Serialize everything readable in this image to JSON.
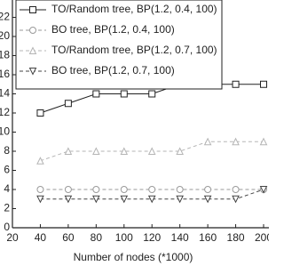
{
  "chart_data": {
    "type": "line",
    "x_label": "Number of nodes (*1000)",
    "x": [
      40,
      60,
      80,
      100,
      120,
      140,
      160,
      180,
      200
    ],
    "series": [
      {
        "name": "TO/Random tree, BP(1.2, 0.4, 100)",
        "color": "#222222",
        "marker": "square",
        "dashed": false,
        "values": [
          12,
          13,
          14,
          14,
          14,
          15,
          15,
          15,
          15
        ]
      },
      {
        "name": "BO tree, BP(1.2, 0.4, 100)",
        "color": "#9a9a9a",
        "marker": "circle",
        "dashed": true,
        "values": [
          4,
          4,
          4,
          4,
          4,
          4,
          4,
          4,
          4
        ]
      },
      {
        "name": "TO/Random tree, BP(1.2, 0.7, 100)",
        "color": "#b5b5b5",
        "marker": "triangle-up",
        "dashed": true,
        "values": [
          7,
          8,
          8,
          8,
          8,
          8,
          9,
          9,
          9
        ]
      },
      {
        "name": "BO tree, BP(1.2, 0.7, 100)",
        "color": "#444444",
        "marker": "triangle-down",
        "dashed": true,
        "values": [
          3,
          3,
          3,
          3,
          3,
          3,
          3,
          3,
          4
        ]
      }
    ],
    "xlim": [
      20,
      200
    ],
    "xticks": [
      20,
      40,
      60,
      80,
      100,
      120,
      140,
      160,
      180,
      200
    ],
    "ylim": [
      0,
      24
    ],
    "yticks": [
      0,
      2,
      4,
      6,
      8,
      10,
      12,
      14,
      16,
      18,
      20,
      22
    ],
    "legend": "upper-left"
  }
}
